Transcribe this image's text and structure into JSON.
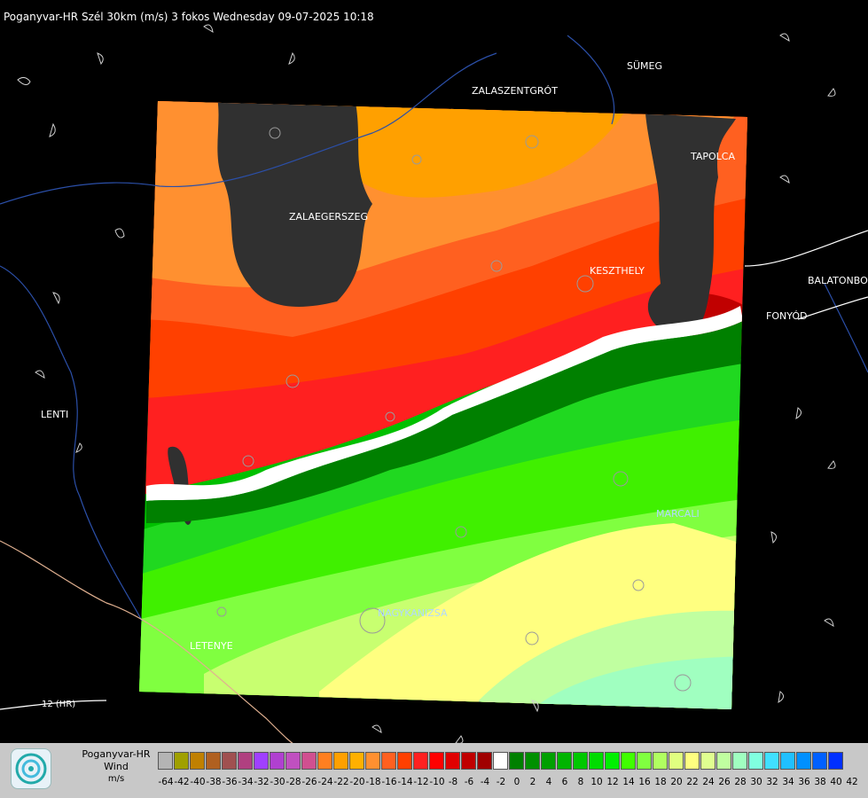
{
  "header": {
    "title": "Poganyvar-HR Szél 30km (m/s) 3 fokos Wednesday 09-07-2025 10:18"
  },
  "cities": [
    {
      "name": "SÜMEG"
    },
    {
      "name": "ZALASZENTGRÓT"
    },
    {
      "name": "ZALAEGERSZEG"
    },
    {
      "name": "TAPOLCA"
    },
    {
      "name": "KESZTHELY"
    },
    {
      "name": "BALATONBO"
    },
    {
      "name": "FONYÓD"
    },
    {
      "name": "LENTI"
    },
    {
      "name": "MARCALI"
    },
    {
      "name": "NAGYKANIZSA"
    },
    {
      "name": "LETENYE"
    }
  ],
  "road_label": "12 (HR)",
  "legend": {
    "line1": "Poganyvar-HR",
    "line2": "Wind",
    "line3": "m/s",
    "ticks": [
      "-64",
      "-42",
      "-40",
      "-38",
      "-36",
      "-34",
      "-32",
      "-30",
      "-28",
      "-26",
      "-24",
      "-22",
      "-20",
      "-18",
      "-16",
      "-14",
      "-12",
      "-10",
      "-8",
      "-6",
      "-4",
      "-2",
      "0",
      "2",
      "4",
      "6",
      "8",
      "10",
      "12",
      "14",
      "16",
      "18",
      "20",
      "22",
      "24",
      "26",
      "28",
      "30",
      "32",
      "34",
      "36",
      "38",
      "40",
      "42"
    ],
    "colors": [
      "#b4b4b4",
      "#a0a000",
      "#c08000",
      "#b06020",
      "#a05050",
      "#b04080",
      "#a040ff",
      "#b040d0",
      "#c050c0",
      "#d05090",
      "#ff7f20",
      "#ffa000",
      "#ffb000",
      "#ff9030",
      "#ff6020",
      "#ff4000",
      "#ff2020",
      "#ff0000",
      "#e00000",
      "#c00000",
      "#a00000",
      "#ffffff",
      "#008000",
      "#009000",
      "#00a000",
      "#00b400",
      "#00c800",
      "#00dc00",
      "#00f000",
      "#40ff00",
      "#80ff40",
      "#b0ff60",
      "#e0ff80",
      "#ffff80",
      "#e0ff90",
      "#c0ffa0",
      "#a0ffc0",
      "#80ffe0",
      "#40e0ff",
      "#20c0ff",
      "#0090ff",
      "#0060ff",
      "#0030ff"
    ]
  }
}
